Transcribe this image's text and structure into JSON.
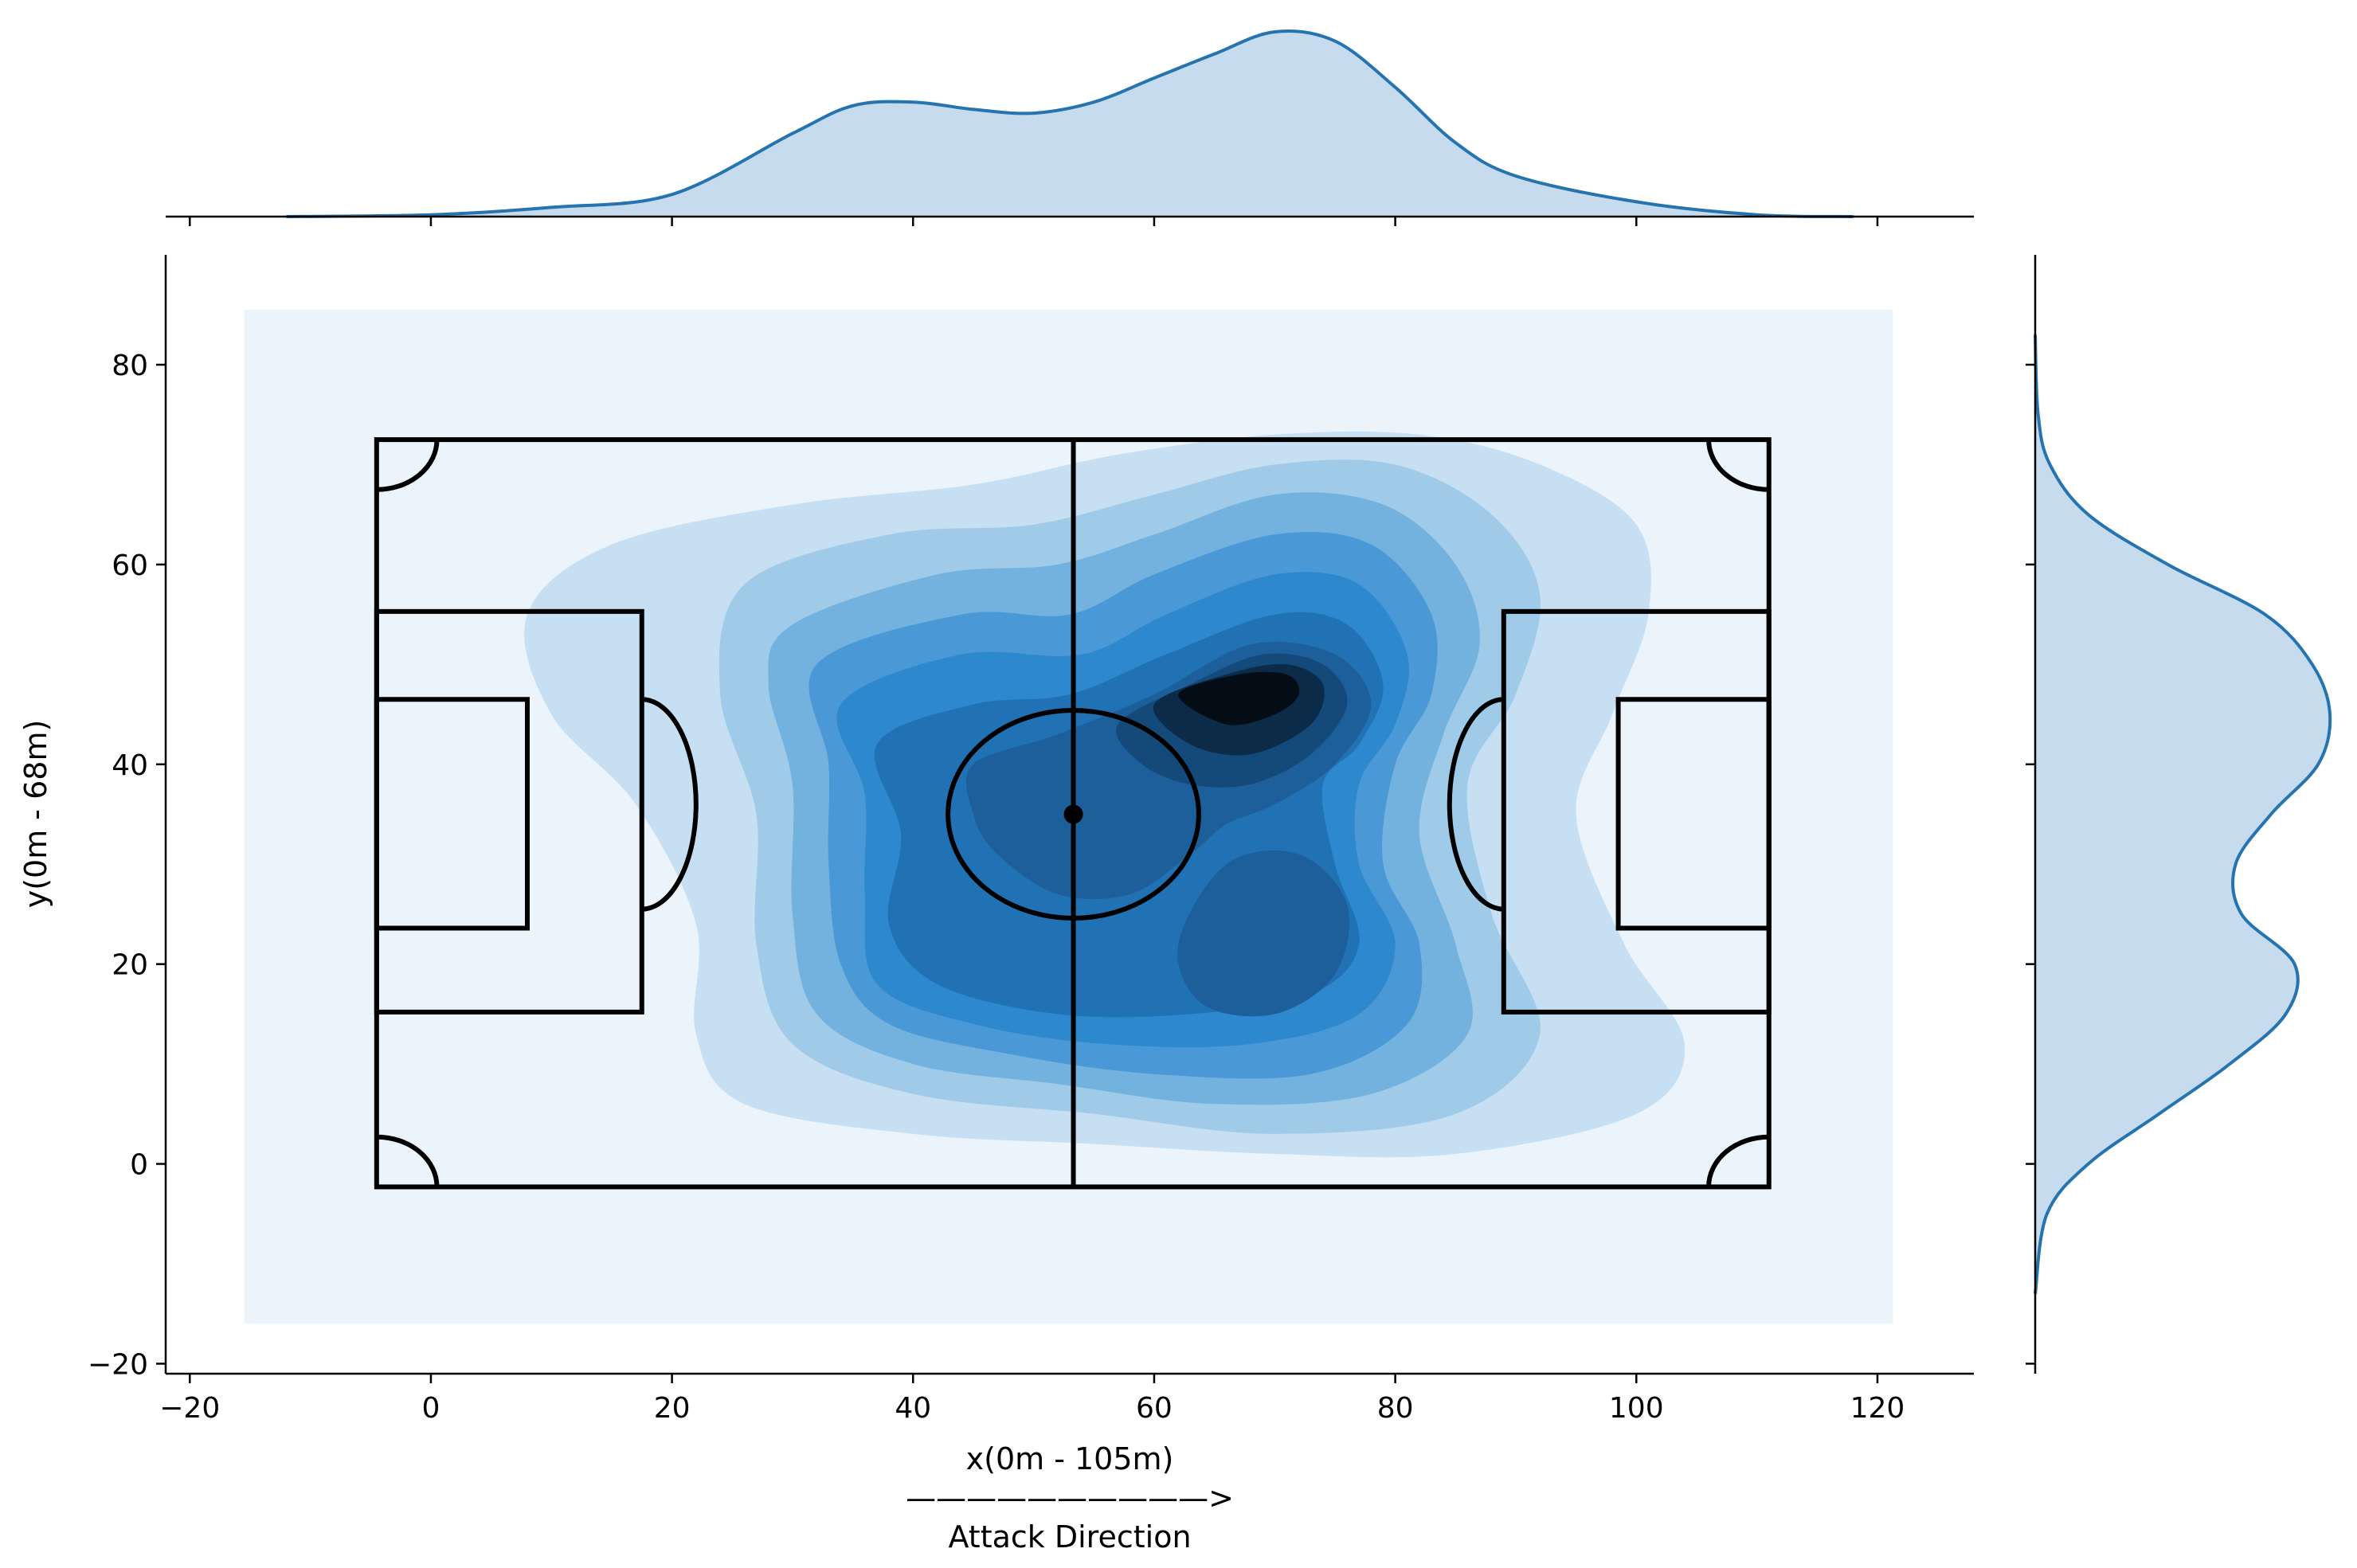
{
  "chart_data": {
    "type": "heatmap",
    "subtype": "joint-kde",
    "title": "",
    "xlabel": "x(0m - 105m)",
    "xlabel_line2": "——————————>",
    "xlabel_line3": "Attack Direction",
    "ylabel": "y(0m - 68m)",
    "xlim": [
      -22,
      128
    ],
    "ylim": [
      -21,
      91
    ],
    "x_ticks": [
      -20,
      0,
      20,
      40,
      60,
      80,
      100,
      120
    ],
    "x_tick_labels": [
      "−20",
      "0",
      "20",
      "40",
      "60",
      "80",
      "100",
      "120"
    ],
    "y_ticks": [
      -20,
      0,
      20,
      40,
      60,
      80
    ],
    "y_tick_labels": [
      "−20",
      "0",
      "20",
      "40",
      "60",
      "80"
    ],
    "grid": false,
    "pitch": {
      "x_min": -4.5,
      "x_max": 111,
      "y_min": -2.3,
      "y_max": 72.5,
      "center": [
        53.3,
        35
      ],
      "center_circle_radius": 10.4,
      "penalty_box_depth": 22,
      "penalty_box_y": [
        15.2,
        55.3
      ],
      "six_yard_depth": 12.5,
      "six_yard_y": [
        23.6,
        46.5
      ]
    },
    "kde_colors": [
      "#ebf3fb",
      "#c6dff2",
      "#a0cbe8",
      "#73b2df",
      "#4a98d6",
      "#2d88ce",
      "#2171b5",
      "#1c5f9a",
      "#144a7a",
      "#0c2b48",
      "#040d16"
    ],
    "hotspots": [
      {
        "x": 68,
        "y": 49,
        "level": 1.0
      },
      {
        "x": 40,
        "y": 35,
        "level": 0.55
      },
      {
        "x": 68,
        "y": 26,
        "level": 0.6
      }
    ],
    "marginal_x": {
      "x": [
        -12,
        0,
        10,
        20,
        30,
        35,
        40,
        45,
        50,
        55,
        60,
        65,
        70,
        75,
        80,
        85,
        90,
        100,
        110,
        118
      ],
      "density": [
        0.0,
        0.01,
        0.05,
        0.12,
        0.45,
        0.6,
        0.62,
        0.58,
        0.56,
        0.62,
        0.75,
        0.88,
        1.0,
        0.95,
        0.7,
        0.4,
        0.22,
        0.08,
        0.01,
        0.0
      ]
    },
    "marginal_y": {
      "y": [
        -13,
        -5,
        0,
        5,
        10,
        15,
        20,
        25,
        30,
        35,
        40,
        45,
        50,
        55,
        60,
        65,
        70,
        75,
        83
      ],
      "density": [
        0.0,
        0.04,
        0.18,
        0.42,
        0.66,
        0.85,
        0.88,
        0.7,
        0.68,
        0.8,
        0.96,
        1.0,
        0.94,
        0.78,
        0.45,
        0.18,
        0.05,
        0.01,
        0.0
      ]
    },
    "marginal_line_color": "#2574b0",
    "marginal_fill_color": "#c6dbed"
  }
}
